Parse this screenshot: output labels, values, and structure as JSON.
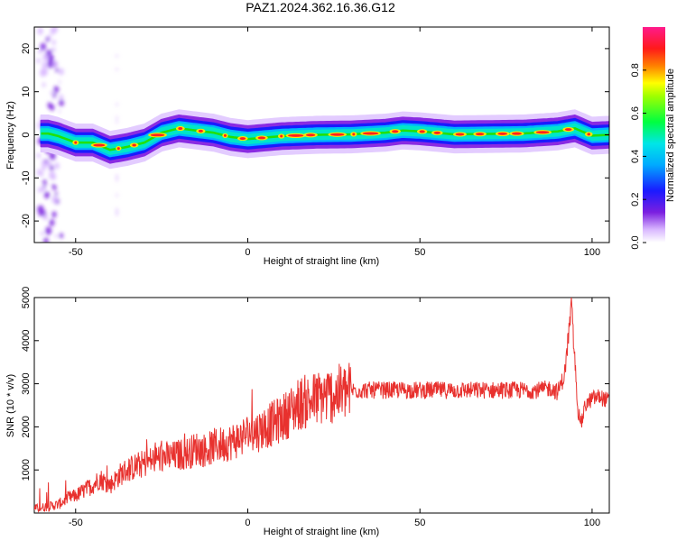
{
  "figure": {
    "title": "PAZ1.2024.362.16.36.G12"
  },
  "colorbar": {
    "label": "Normalized spectral amplitude",
    "ticks": [
      "0.0",
      "0.2",
      "0.4",
      "0.6",
      "0.8"
    ],
    "tick_values": [
      0.0,
      0.2,
      0.4,
      0.6,
      0.8
    ],
    "range": [
      0,
      1
    ]
  },
  "chart_data": [
    {
      "type": "heatmap",
      "xlabel": "Height of straight line (km)",
      "ylabel": "Frequency (Hz)",
      "xlim": [
        -62,
        105
      ],
      "ylim": [
        -25,
        25
      ],
      "x_ticks": [
        -50,
        0,
        50,
        100
      ],
      "x_tick_labels": [
        "-50",
        "0",
        "50",
        "100"
      ],
      "y_ticks": [
        -20,
        -10,
        0,
        10,
        20
      ],
      "y_tick_labels": [
        "-20",
        "-10",
        "0",
        "10",
        "20"
      ],
      "ridge": {
        "x": [
          -58,
          -55,
          -50,
          -45,
          -40,
          -35,
          -30,
          -25,
          -20,
          -15,
          -10,
          -5,
          0,
          10,
          20,
          30,
          40,
          45,
          50,
          60,
          70,
          80,
          90,
          95,
          100,
          105
        ],
        "freq": [
          0.3,
          -0.3,
          -1.8,
          -1.8,
          -3.5,
          -2.8,
          -1.8,
          0.5,
          1.5,
          1.0,
          0.5,
          -0.5,
          -1.0,
          -0.3,
          0.0,
          0.1,
          0.5,
          1.0,
          0.8,
          0.1,
          0.2,
          0.3,
          0.8,
          1.5,
          -0.2,
          0.0
        ]
      },
      "colorscale": "rainbow (purple → blue → cyan → green → yellow → red → magenta)"
    },
    {
      "type": "line",
      "xlabel": "Height of straight line (km)",
      "ylabel": "SNR (10 * v/v)",
      "xlim": [
        -62,
        105
      ],
      "ylim": [
        0,
        5000
      ],
      "x_ticks": [
        -50,
        0,
        50,
        100
      ],
      "x_tick_labels": [
        "-50",
        "0",
        "50",
        "100"
      ],
      "y_ticks": [
        1000,
        2000,
        3000,
        4000,
        5000
      ],
      "y_tick_labels": [
        "1000",
        "2000",
        "3000",
        "4000",
        "5000"
      ],
      "series": [
        {
          "color": "#e8312e",
          "x": [
            -62,
            -58,
            -55,
            -52,
            -50,
            -47,
            -45,
            -43,
            -40,
            -37,
            -35,
            -32,
            -30,
            -27,
            -25,
            -22,
            -20,
            -17,
            -15,
            -12,
            -10,
            -7,
            -5,
            -2,
            0,
            3,
            5,
            8,
            10,
            13,
            15,
            18,
            20,
            22,
            25,
            28,
            30,
            35,
            40,
            45,
            50,
            55,
            60,
            65,
            70,
            75,
            80,
            85,
            88,
            90,
            92,
            93,
            94,
            95,
            96,
            97,
            98,
            100,
            102,
            105
          ],
          "y": [
            100,
            150,
            200,
            350,
            400,
            550,
            650,
            800,
            650,
            900,
            1000,
            1100,
            1150,
            1250,
            1300,
            1300,
            1350,
            1400,
            1500,
            1450,
            1550,
            1600,
            1650,
            1750,
            1850,
            1900,
            2000,
            2100,
            2200,
            2400,
            2550,
            2600,
            2650,
            2700,
            2750,
            2800,
            2850,
            2850,
            2850,
            2850,
            2850,
            2850,
            2850,
            2850,
            2850,
            2850,
            2850,
            2850,
            2900,
            2800,
            3200,
            4000,
            4800,
            3500,
            2300,
            2100,
            2500,
            2650,
            2700,
            2600
          ]
        }
      ]
    }
  ]
}
